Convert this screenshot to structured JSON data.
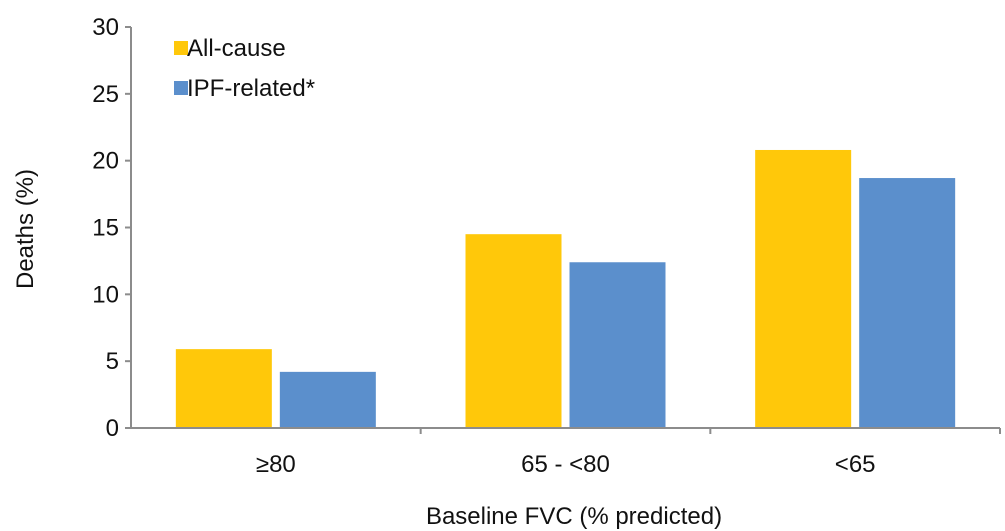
{
  "chart_data": {
    "type": "bar",
    "categories": [
      "≥80",
      "65 - <80",
      "<65"
    ],
    "series": [
      {
        "name": "All-cause",
        "values": [
          5.9,
          14.5,
          20.8
        ],
        "color": "#FFC80A"
      },
      {
        "name": "IPF-related*",
        "values": [
          4.2,
          12.4,
          18.7
        ],
        "color": "#5B8FCC"
      }
    ],
    "xlabel": "Baseline FVC (% predicted)",
    "ylabel": "Deaths (%)",
    "ylim": [
      0,
      30
    ],
    "yticks": [
      0,
      5,
      10,
      15,
      20,
      25,
      30
    ],
    "grid": false,
    "legend_position": "top-left"
  }
}
